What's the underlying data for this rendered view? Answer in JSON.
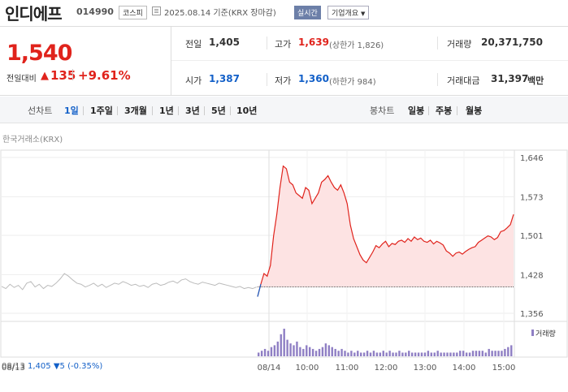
{
  "header": {
    "name": "인디에프",
    "code": "014990",
    "market": "코스피",
    "date": "2025.08.14 기준(KRX 장마감)",
    "realtime": "실시간",
    "company": "기업개요"
  },
  "quote": {
    "price": "1,540",
    "change_label": "전일대비",
    "change_arrow": "▲",
    "change": "135",
    "change_pct": "+9.61%",
    "prev_close_label": "전일",
    "prev_close": "1,405",
    "high_label": "고가",
    "high": "1,639",
    "upper_limit": "(상한가 1,826)",
    "volume_label": "거래량",
    "volume": "20,371,750",
    "open_label": "시가",
    "open": "1,387",
    "low_label": "저가",
    "low": "1,360",
    "lower_limit": "(하한가 984)",
    "value_label": "거래대금",
    "value": "31,397",
    "value_unit": "백만"
  },
  "tabs": {
    "line_label": "선차트",
    "line_tabs": [
      "1일",
      "1주일",
      "3개월",
      "1년",
      "3년",
      "5년",
      "10년"
    ],
    "active": "1일",
    "candle_label": "봉차트",
    "candle_tabs": [
      "일봉",
      "주봉",
      "월봉"
    ]
  },
  "source": "한국거래소(KRX)",
  "volume_legend": "거래량",
  "prev_info": {
    "date": "08/13",
    "price": "1,405",
    "arrow": "▼",
    "change": "5",
    "pct": "(-0.35%)"
  },
  "colors": {
    "up": "#e0231c",
    "down": "#1360c8",
    "fill": "#fde3e3",
    "prev_line": "#bbbbbb",
    "volume": "#8f7fc4"
  },
  "chart_data": {
    "type": "line",
    "title": "",
    "xlabel": "",
    "ylabel": "",
    "ylim": [
      1340,
      1660
    ],
    "y_ticks": [
      1646,
      1573,
      1501,
      1428,
      1356
    ],
    "y_tick_labels": [
      "1,646",
      "1,573",
      "1,501",
      "1,428",
      "1,356"
    ],
    "x_ticks": [
      "08/13",
      "08/14",
      "10:00",
      "11:00",
      "12:00",
      "13:00",
      "14:00",
      "15:00"
    ],
    "baseline": 1405,
    "grid": true,
    "legend": "none",
    "series": [
      {
        "values_prev_day": [
          1406,
          1402,
          1410,
          1404,
          1408,
          1400,
          1412,
          1415,
          1405,
          1410,
          1402,
          1408,
          1406,
          1412,
          1420,
          1430,
          1425,
          1418,
          1412,
          1410,
          1405,
          1408,
          1412,
          1406,
          1410,
          1404,
          1408,
          1412,
          1410,
          1415,
          1412,
          1408,
          1410,
          1406,
          1408,
          1404,
          1410,
          1412,
          1408,
          1410,
          1414,
          1416,
          1412,
          1418,
          1420,
          1415,
          1412,
          1410,
          1414,
          1412,
          1410,
          1408,
          1412,
          1410,
          1408,
          1406,
          1404,
          1406,
          1402,
          1404,
          1402,
          1405
        ],
        "values_today": [
          1387,
          1410,
          1430,
          1425,
          1445,
          1500,
          1540,
          1590,
          1630,
          1625,
          1600,
          1595,
          1580,
          1575,
          1570,
          1590,
          1585,
          1560,
          1570,
          1580,
          1600,
          1605,
          1612,
          1600,
          1590,
          1585,
          1595,
          1580,
          1560,
          1520,
          1495,
          1480,
          1465,
          1455,
          1450,
          1460,
          1470,
          1482,
          1478,
          1485,
          1490,
          1480,
          1486,
          1484,
          1490,
          1492,
          1488,
          1495,
          1490,
          1498,
          1493,
          1496,
          1490,
          1488,
          1492,
          1485,
          1490,
          1487,
          1483,
          1472,
          1468,
          1462,
          1468,
          1470,
          1466,
          1471,
          1475,
          1478,
          1480,
          1488,
          1492,
          1496,
          1500,
          1498,
          1493,
          1497,
          1508,
          1510,
          1515,
          1521,
          1540
        ]
      }
    ],
    "volume": [
      2,
      3,
      4,
      3,
      5,
      6,
      8,
      12,
      15,
      9,
      7,
      6,
      8,
      5,
      4,
      6,
      5,
      4,
      3,
      4,
      5,
      7,
      6,
      5,
      4,
      3,
      4,
      3,
      2,
      3,
      2,
      3,
      2,
      2,
      3,
      2,
      3,
      2,
      2,
      3,
      2,
      3,
      2,
      2,
      3,
      2,
      2,
      3,
      2,
      2,
      2,
      2,
      2,
      3,
      2,
      2,
      3,
      2,
      2,
      2,
      2,
      2,
      2,
      3,
      3,
      2,
      2,
      3,
      3,
      3,
      3,
      2,
      4,
      3,
      3,
      3,
      3,
      4,
      5,
      6
    ]
  }
}
